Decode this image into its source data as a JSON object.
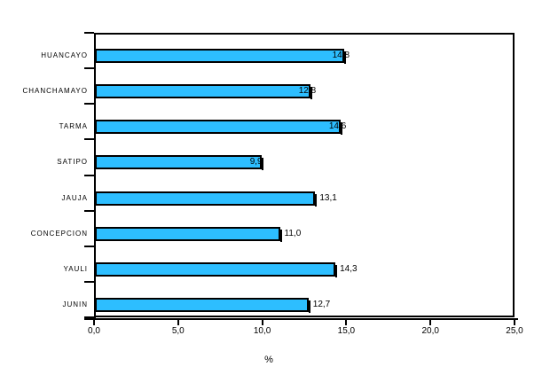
{
  "window": {
    "background": "#ffffff"
  },
  "chart_data": {
    "type": "bar",
    "orientation": "horizontal",
    "title": "",
    "categories": [
      "HUANCAYO",
      "CHANCHAMAYO",
      "TARMA",
      "SATIPO",
      "JAUJA",
      "CONCEPCION",
      "YAULI",
      "JUNIN"
    ],
    "values": [
      14.8,
      12.8,
      14.6,
      9.9,
      13.1,
      11.0,
      14.3,
      12.7
    ],
    "value_labels": [
      "14,8",
      "12,8",
      "14,6",
      "9,9",
      "13,1",
      "11,0",
      "14,3",
      "12,7"
    ],
    "xlabel": "%",
    "ylabel": "",
    "xlim": [
      0,
      25
    ],
    "x_ticks": [
      0,
      5,
      10,
      15,
      20,
      25
    ],
    "x_tick_labels": [
      "0,0",
      "5,0",
      "10,0",
      "15,0",
      "20,0",
      "25,0"
    ],
    "bar_color": "#2DBEFF",
    "bar_border_color": "#000000",
    "axis_color": "#000000",
    "grid": false,
    "legend": false
  }
}
